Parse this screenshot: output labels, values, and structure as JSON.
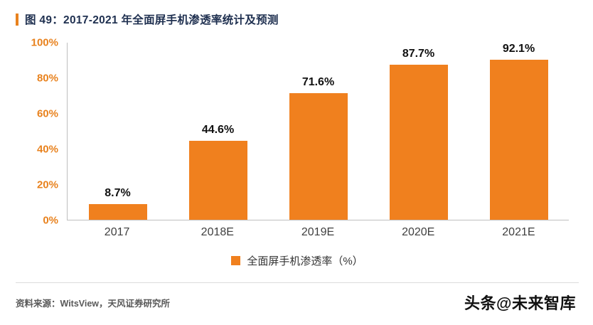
{
  "header": {
    "title": "图 49：2017-2021 年全面屏手机渗透率统计及预测"
  },
  "chart_data": {
    "type": "bar",
    "title": "2017-2021 年全面屏手机渗透率统计及预测",
    "categories": [
      "2017",
      "2018E",
      "2019E",
      "2020E",
      "2021E"
    ],
    "values": [
      8.7,
      44.6,
      71.6,
      87.7,
      92.1
    ],
    "data_labels": [
      "8.7%",
      "44.6%",
      "71.6%",
      "87.7%",
      "92.1%"
    ],
    "y_ticks": [
      "100%",
      "80%",
      "60%",
      "40%",
      "20%",
      "0%"
    ],
    "ylim": [
      0,
      100
    ],
    "xlabel": "",
    "ylabel": "",
    "grid": false,
    "legend": "全面屏手机渗透率（%）",
    "legend_position": "bottom",
    "bar_color": "#F0801E"
  },
  "colors": {
    "accent": "#E8821E",
    "y_tick": "#E8821E",
    "title": "#1F3050",
    "axis_line": "#BFBFBF"
  },
  "footer": {
    "source": "资料来源：WitsView，天风证券研究所",
    "watermark": "头条@未来智库"
  }
}
